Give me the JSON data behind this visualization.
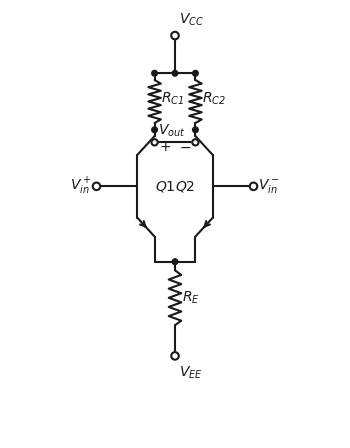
{
  "fig_width": 3.5,
  "fig_height": 4.48,
  "dpi": 100,
  "bg_color": "#ffffff",
  "line_color": "#1a1a1a",
  "lw": 1.5
}
